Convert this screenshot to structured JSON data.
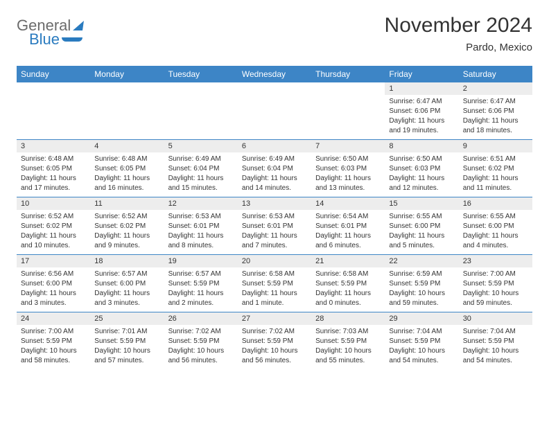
{
  "logo": {
    "line1": "General",
    "line2": "Blue"
  },
  "title": "November 2024",
  "location": "Pardo, Mexico",
  "colors": {
    "header_bg": "#3d85c6",
    "header_text": "#ffffff",
    "daynum_bg": "#ededed",
    "week_divider": "#3d85c6",
    "text": "#333333",
    "logo_blue": "#2a7bbf",
    "logo_gray": "#6b6b6b"
  },
  "day_names": [
    "Sunday",
    "Monday",
    "Tuesday",
    "Wednesday",
    "Thursday",
    "Friday",
    "Saturday"
  ],
  "weeks": [
    [
      {
        "blank": true
      },
      {
        "blank": true
      },
      {
        "blank": true
      },
      {
        "blank": true
      },
      {
        "blank": true
      },
      {
        "day": "1",
        "sunrise": "Sunrise: 6:47 AM",
        "sunset": "Sunset: 6:06 PM",
        "dl1": "Daylight: 11 hours",
        "dl2": "and 19 minutes."
      },
      {
        "day": "2",
        "sunrise": "Sunrise: 6:47 AM",
        "sunset": "Sunset: 6:06 PM",
        "dl1": "Daylight: 11 hours",
        "dl2": "and 18 minutes."
      }
    ],
    [
      {
        "day": "3",
        "sunrise": "Sunrise: 6:48 AM",
        "sunset": "Sunset: 6:05 PM",
        "dl1": "Daylight: 11 hours",
        "dl2": "and 17 minutes."
      },
      {
        "day": "4",
        "sunrise": "Sunrise: 6:48 AM",
        "sunset": "Sunset: 6:05 PM",
        "dl1": "Daylight: 11 hours",
        "dl2": "and 16 minutes."
      },
      {
        "day": "5",
        "sunrise": "Sunrise: 6:49 AM",
        "sunset": "Sunset: 6:04 PM",
        "dl1": "Daylight: 11 hours",
        "dl2": "and 15 minutes."
      },
      {
        "day": "6",
        "sunrise": "Sunrise: 6:49 AM",
        "sunset": "Sunset: 6:04 PM",
        "dl1": "Daylight: 11 hours",
        "dl2": "and 14 minutes."
      },
      {
        "day": "7",
        "sunrise": "Sunrise: 6:50 AM",
        "sunset": "Sunset: 6:03 PM",
        "dl1": "Daylight: 11 hours",
        "dl2": "and 13 minutes."
      },
      {
        "day": "8",
        "sunrise": "Sunrise: 6:50 AM",
        "sunset": "Sunset: 6:03 PM",
        "dl1": "Daylight: 11 hours",
        "dl2": "and 12 minutes."
      },
      {
        "day": "9",
        "sunrise": "Sunrise: 6:51 AM",
        "sunset": "Sunset: 6:02 PM",
        "dl1": "Daylight: 11 hours",
        "dl2": "and 11 minutes."
      }
    ],
    [
      {
        "day": "10",
        "sunrise": "Sunrise: 6:52 AM",
        "sunset": "Sunset: 6:02 PM",
        "dl1": "Daylight: 11 hours",
        "dl2": "and 10 minutes."
      },
      {
        "day": "11",
        "sunrise": "Sunrise: 6:52 AM",
        "sunset": "Sunset: 6:02 PM",
        "dl1": "Daylight: 11 hours",
        "dl2": "and 9 minutes."
      },
      {
        "day": "12",
        "sunrise": "Sunrise: 6:53 AM",
        "sunset": "Sunset: 6:01 PM",
        "dl1": "Daylight: 11 hours",
        "dl2": "and 8 minutes."
      },
      {
        "day": "13",
        "sunrise": "Sunrise: 6:53 AM",
        "sunset": "Sunset: 6:01 PM",
        "dl1": "Daylight: 11 hours",
        "dl2": "and 7 minutes."
      },
      {
        "day": "14",
        "sunrise": "Sunrise: 6:54 AM",
        "sunset": "Sunset: 6:01 PM",
        "dl1": "Daylight: 11 hours",
        "dl2": "and 6 minutes."
      },
      {
        "day": "15",
        "sunrise": "Sunrise: 6:55 AM",
        "sunset": "Sunset: 6:00 PM",
        "dl1": "Daylight: 11 hours",
        "dl2": "and 5 minutes."
      },
      {
        "day": "16",
        "sunrise": "Sunrise: 6:55 AM",
        "sunset": "Sunset: 6:00 PM",
        "dl1": "Daylight: 11 hours",
        "dl2": "and 4 minutes."
      }
    ],
    [
      {
        "day": "17",
        "sunrise": "Sunrise: 6:56 AM",
        "sunset": "Sunset: 6:00 PM",
        "dl1": "Daylight: 11 hours",
        "dl2": "and 3 minutes."
      },
      {
        "day": "18",
        "sunrise": "Sunrise: 6:57 AM",
        "sunset": "Sunset: 6:00 PM",
        "dl1": "Daylight: 11 hours",
        "dl2": "and 3 minutes."
      },
      {
        "day": "19",
        "sunrise": "Sunrise: 6:57 AM",
        "sunset": "Sunset: 5:59 PM",
        "dl1": "Daylight: 11 hours",
        "dl2": "and 2 minutes."
      },
      {
        "day": "20",
        "sunrise": "Sunrise: 6:58 AM",
        "sunset": "Sunset: 5:59 PM",
        "dl1": "Daylight: 11 hours",
        "dl2": "and 1 minute."
      },
      {
        "day": "21",
        "sunrise": "Sunrise: 6:58 AM",
        "sunset": "Sunset: 5:59 PM",
        "dl1": "Daylight: 11 hours",
        "dl2": "and 0 minutes."
      },
      {
        "day": "22",
        "sunrise": "Sunrise: 6:59 AM",
        "sunset": "Sunset: 5:59 PM",
        "dl1": "Daylight: 10 hours",
        "dl2": "and 59 minutes."
      },
      {
        "day": "23",
        "sunrise": "Sunrise: 7:00 AM",
        "sunset": "Sunset: 5:59 PM",
        "dl1": "Daylight: 10 hours",
        "dl2": "and 59 minutes."
      }
    ],
    [
      {
        "day": "24",
        "sunrise": "Sunrise: 7:00 AM",
        "sunset": "Sunset: 5:59 PM",
        "dl1": "Daylight: 10 hours",
        "dl2": "and 58 minutes."
      },
      {
        "day": "25",
        "sunrise": "Sunrise: 7:01 AM",
        "sunset": "Sunset: 5:59 PM",
        "dl1": "Daylight: 10 hours",
        "dl2": "and 57 minutes."
      },
      {
        "day": "26",
        "sunrise": "Sunrise: 7:02 AM",
        "sunset": "Sunset: 5:59 PM",
        "dl1": "Daylight: 10 hours",
        "dl2": "and 56 minutes."
      },
      {
        "day": "27",
        "sunrise": "Sunrise: 7:02 AM",
        "sunset": "Sunset: 5:59 PM",
        "dl1": "Daylight: 10 hours",
        "dl2": "and 56 minutes."
      },
      {
        "day": "28",
        "sunrise": "Sunrise: 7:03 AM",
        "sunset": "Sunset: 5:59 PM",
        "dl1": "Daylight: 10 hours",
        "dl2": "and 55 minutes."
      },
      {
        "day": "29",
        "sunrise": "Sunrise: 7:04 AM",
        "sunset": "Sunset: 5:59 PM",
        "dl1": "Daylight: 10 hours",
        "dl2": "and 54 minutes."
      },
      {
        "day": "30",
        "sunrise": "Sunrise: 7:04 AM",
        "sunset": "Sunset: 5:59 PM",
        "dl1": "Daylight: 10 hours",
        "dl2": "and 54 minutes."
      }
    ]
  ]
}
